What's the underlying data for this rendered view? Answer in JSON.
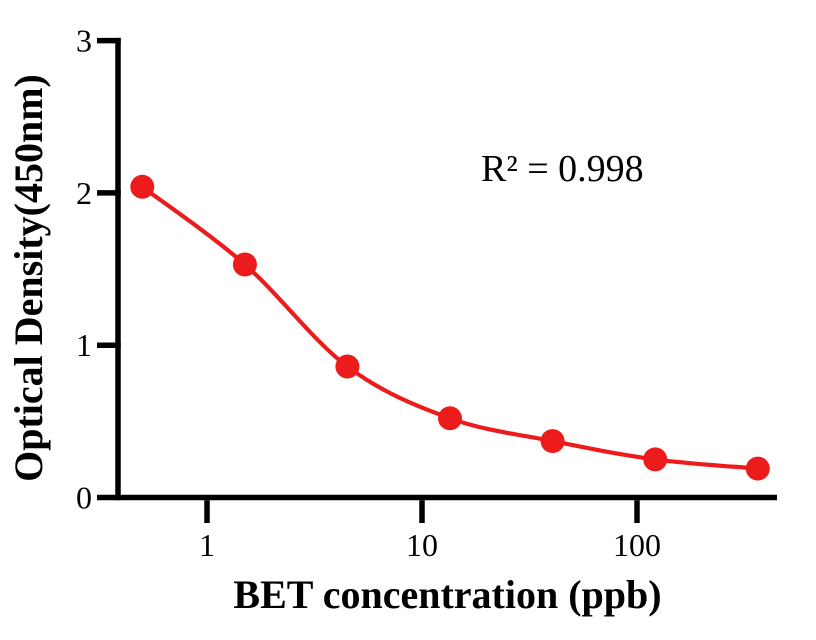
{
  "chart_data": {
    "type": "scatter",
    "subtype": "standard-curve-with-fitted-line",
    "title": "",
    "xlabel": "BET concentration (ppb)",
    "ylabel": "Optical Density(450nm)",
    "annotation": "R² = 0.998",
    "x_scale": "log10",
    "x": [
      0.5,
      1.5,
      4.5,
      13.5,
      40.5,
      121.5,
      364.5
    ],
    "y": [
      2.04,
      1.53,
      0.86,
      0.52,
      0.37,
      0.25,
      0.19
    ],
    "x_ticks": [
      1,
      10,
      100
    ],
    "x_tick_labels": [
      "1",
      "10",
      "100"
    ],
    "y_ticks": [
      0,
      1,
      2,
      3
    ],
    "y_tick_labels": [
      "0",
      "1",
      "2",
      "3"
    ],
    "xlim": [
      0.4,
      450
    ],
    "ylim": [
      0,
      3
    ],
    "grid": false,
    "legend": false,
    "series_color": "#ec1c1c",
    "axis_color": "#000000",
    "background_color": "#ffffff"
  }
}
